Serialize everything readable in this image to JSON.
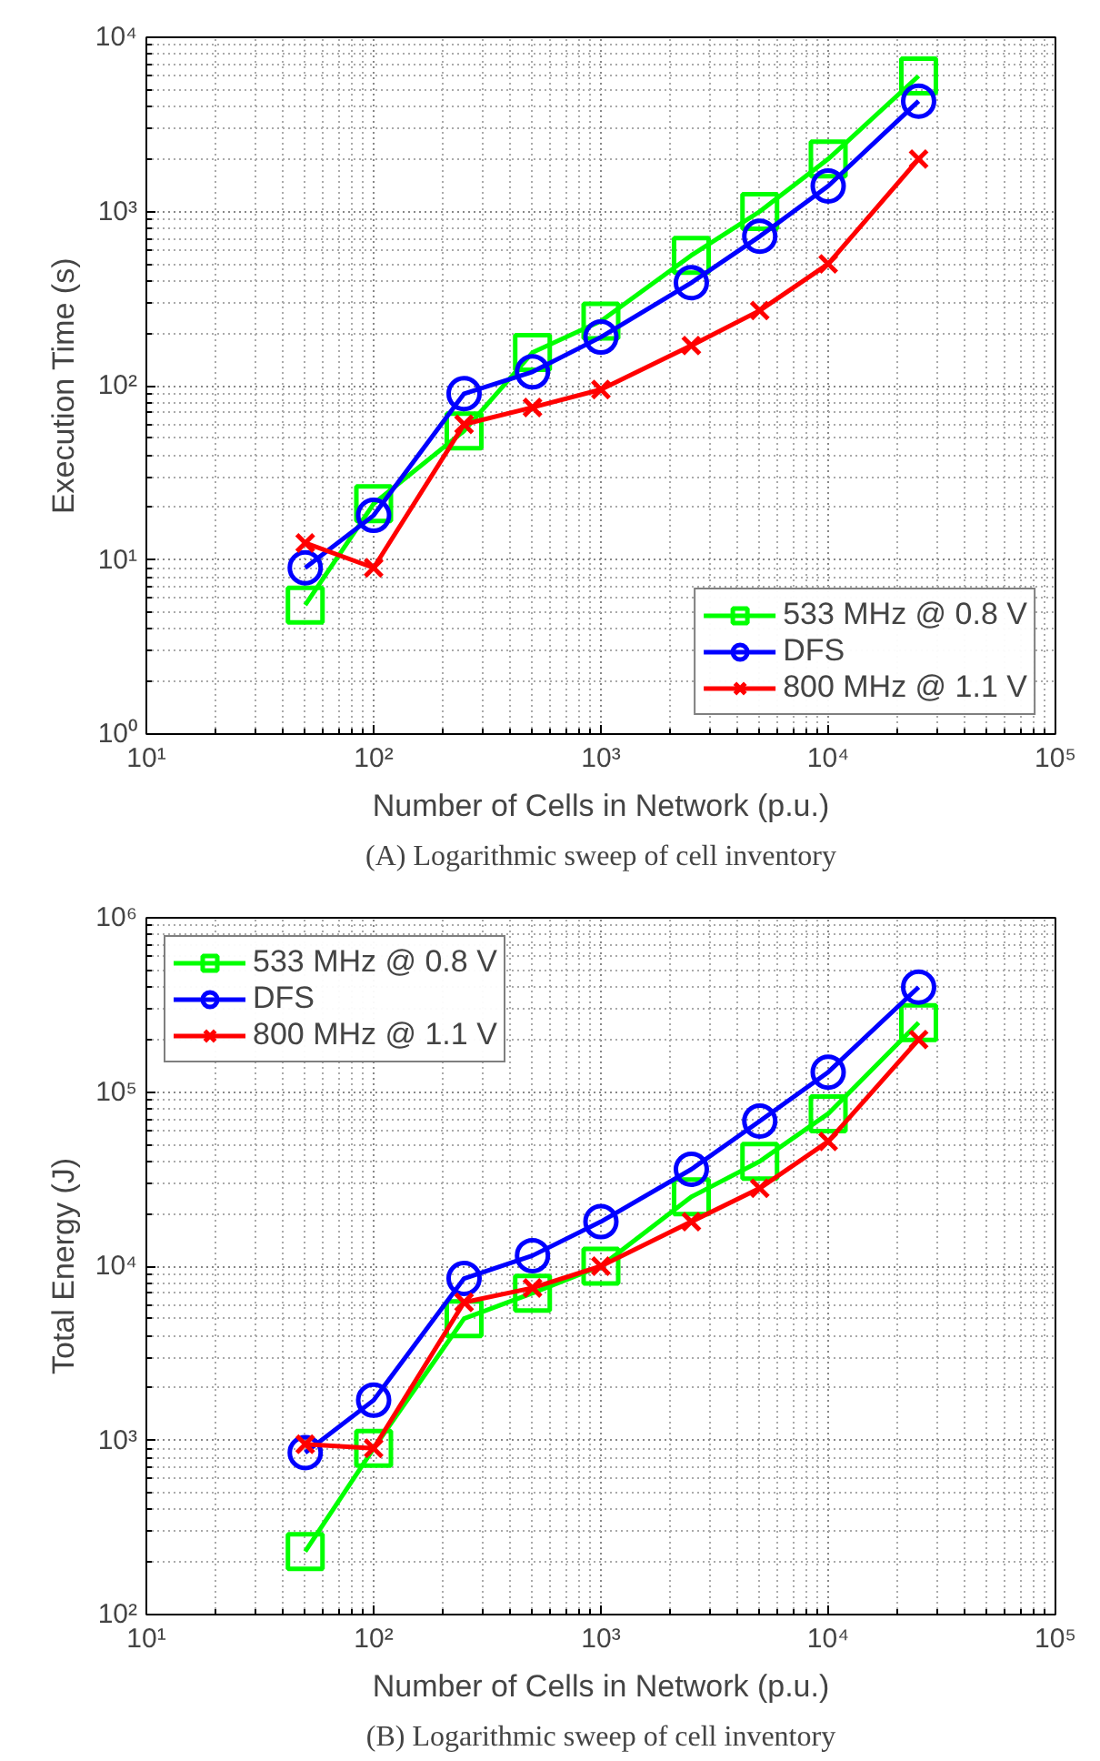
{
  "chart_data": [
    {
      "type": "line",
      "xlabel": "Number of Cells in Network (p.u.)",
      "ylabel": "Execution Time (s)",
      "annotations": [
        "(A) Logarithmic sweep of cell inventory"
      ],
      "log": "xy",
      "grid": true,
      "legend": "bottom right",
      "line_style": "solid",
      "x": [
        50,
        100,
        250,
        500,
        1000,
        2500,
        5000,
        10000,
        25000
      ],
      "xlim": [
        10,
        100000
      ],
      "ylim": [
        1,
        10000
      ],
      "xticks": [
        {
          "value": 10,
          "label": "10¹"
        },
        {
          "value": 100,
          "label": "10²"
        },
        {
          "value": 1000,
          "label": "10³"
        },
        {
          "value": 10000,
          "label": "10⁴"
        },
        {
          "value": 100000,
          "label": "10⁵"
        }
      ],
      "yticks": [
        {
          "value": 1,
          "label": "10⁰"
        },
        {
          "value": 10,
          "label": "10¹"
        },
        {
          "value": 100,
          "label": "10²"
        },
        {
          "value": 1000,
          "label": "10³"
        },
        {
          "value": 10000,
          "label": "10⁴"
        }
      ],
      "series": [
        {
          "name": "533 MHz @ 0.8 V",
          "color": "#00ff00",
          "marker": "square",
          "values": [
            5.5,
            21,
            55,
            155,
            235,
            560,
            1000,
            2000,
            6000
          ]
        },
        {
          "name": "DFS",
          "color": "#0000ff",
          "marker": "circle",
          "values": [
            9,
            18,
            90,
            120,
            190,
            390,
            720,
            1400,
            4300
          ]
        },
        {
          "name": "800 MHz @ 1.1 V",
          "color": "#ff0000",
          "marker": "cross",
          "values": [
            12.5,
            9,
            60,
            75,
            95,
            170,
            270,
            500,
            2000
          ]
        }
      ]
    },
    {
      "type": "line",
      "xlabel": "Number of Cells in Network (p.u.)",
      "ylabel": "Total Energy (J)",
      "annotations": [
        "(B) Logarithmic sweep of cell inventory"
      ],
      "log": "xy",
      "grid": true,
      "legend": "top left",
      "line_style": "solid",
      "x": [
        50,
        100,
        250,
        500,
        1000,
        2500,
        5000,
        10000,
        25000
      ],
      "xlim": [
        10,
        100000
      ],
      "ylim": [
        100,
        1000000
      ],
      "xticks": [
        {
          "value": 10,
          "label": "10¹"
        },
        {
          "value": 100,
          "label": "10²"
        },
        {
          "value": 1000,
          "label": "10³"
        },
        {
          "value": 10000,
          "label": "10⁴"
        },
        {
          "value": 100000,
          "label": "10⁵"
        }
      ],
      "yticks": [
        {
          "value": 100,
          "label": "10²"
        },
        {
          "value": 1000,
          "label": "10³"
        },
        {
          "value": 10000,
          "label": "10⁴"
        },
        {
          "value": 100000,
          "label": "10⁵"
        },
        {
          "value": 1000000,
          "label": "10⁶"
        }
      ],
      "series": [
        {
          "name": "533 MHz @ 0.8 V",
          "color": "#00ff00",
          "marker": "square",
          "values": [
            230,
            900,
            5000,
            7000,
            10000,
            25000,
            40000,
            75000,
            250000
          ]
        },
        {
          "name": "DFS",
          "color": "#0000ff",
          "marker": "circle",
          "values": [
            850,
            1700,
            8500,
            11500,
            18000,
            36000,
            68000,
            130000,
            400000
          ]
        },
        {
          "name": "800 MHz @ 1.1 V",
          "color": "#ff0000",
          "marker": "cross",
          "values": [
            950,
            900,
            6200,
            7500,
            10000,
            18000,
            28000,
            52000,
            200000
          ]
        }
      ]
    }
  ]
}
